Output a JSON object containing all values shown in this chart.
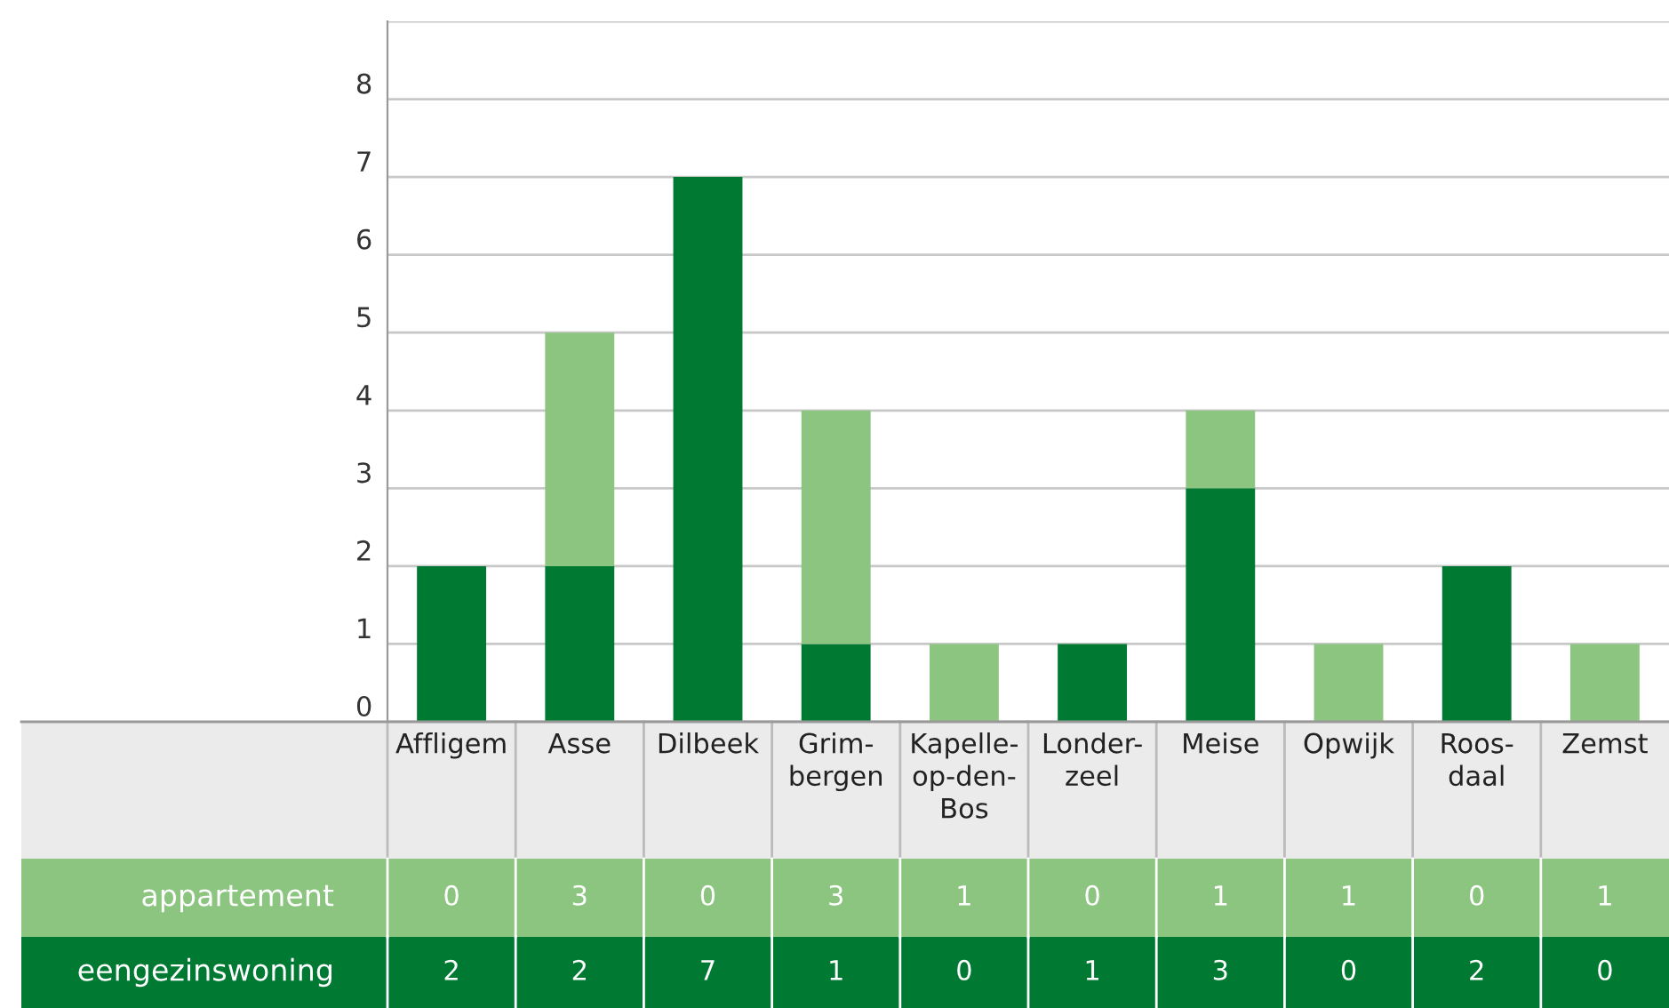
{
  "chart_data": {
    "type": "bar",
    "stacked": true,
    "categories": [
      "Affligem",
      "Asse",
      "Dilbeek",
      "Grim-\nbergen",
      "Kapelle-\nop-den-\nBos",
      "Londer-\nzeel",
      "Meise",
      "Opwijk",
      "Roos-\ndaal",
      "Zemst"
    ],
    "series": [
      {
        "name": "eengezinswoning",
        "color": "#007a33",
        "values": [
          2,
          2,
          7,
          1,
          0,
          1,
          3,
          0,
          2,
          0
        ]
      },
      {
        "name": "appartement",
        "color": "#8cc57f",
        "values": [
          0,
          3,
          0,
          3,
          1,
          0,
          1,
          1,
          0,
          1
        ]
      }
    ],
    "ylim": [
      0,
      9
    ],
    "yticks": [
      0,
      1,
      2,
      3,
      4,
      5,
      6,
      7,
      8,
      {
        "value": 9,
        "label": null
      }
    ],
    "grid": "y",
    "legend": false,
    "data_labels": true
  }
}
